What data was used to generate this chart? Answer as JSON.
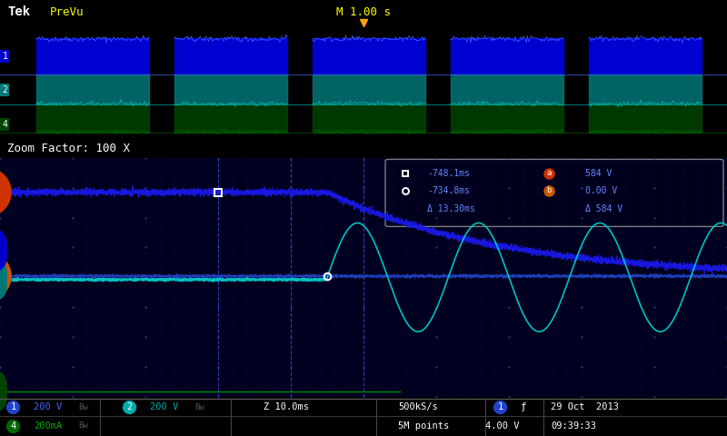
{
  "bg_color": "#000000",
  "panel_bg": "#000020",
  "ch1_color": "#1a1aee",
  "ch1b_color": "#2244cc",
  "ch2_color": "#00cccc",
  "ch4_color": "#00aa00",
  "cursor_color": "#3344cc",
  "header_bg": "#000000",
  "title_top": "Tek PreVu",
  "title_time": "M 1.00 s",
  "zoom_label": "Zoom Factor: 100 X",
  "ch_a_color": "#cc3300",
  "ch_b_color": "#cc5500",
  "legend_text_color": "#6688ff",
  "legend_delta1": "Δ 13.30ms",
  "legend_delta2": "Δ 584 V",
  "legend_t1": "-748.1ms",
  "legend_t2": "-734.8ms",
  "legend_v1": "584 V",
  "legend_v2": "0.00 V",
  "status_ch1_color": "#2244cc",
  "status_ch2_color": "#00aaaa",
  "status_ch4_color": "#006600",
  "status_ch4_text_color": "#00aa00",
  "status_sep_color": "#444444",
  "status_text_color": "#ffffff",
  "status_bw_color": "#555555"
}
